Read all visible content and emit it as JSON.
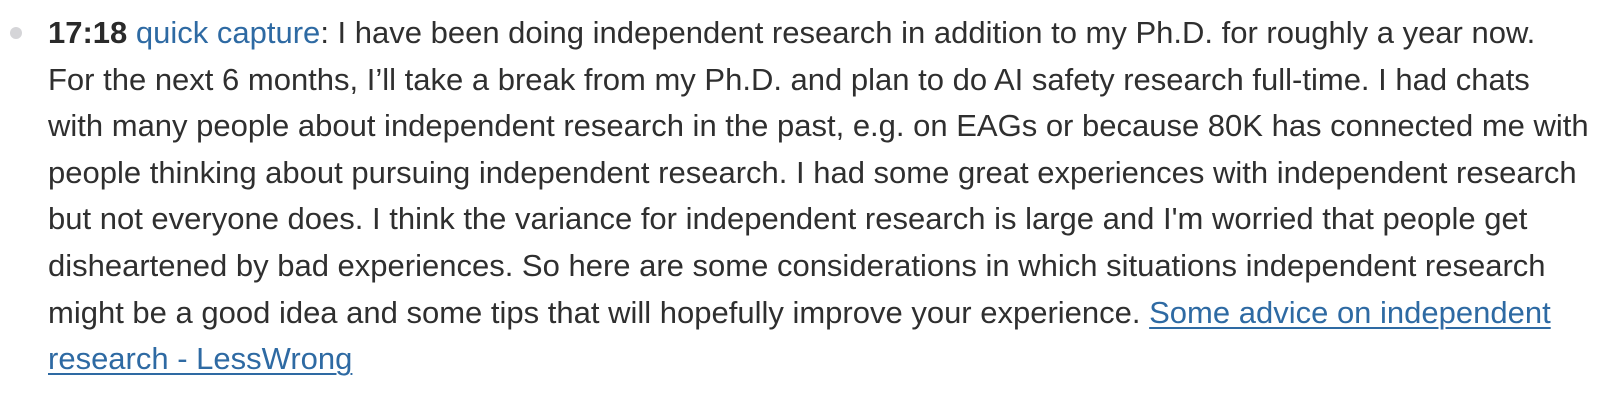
{
  "entry": {
    "time": "17:18",
    "tag": "quick capture",
    "separator": ":",
    "text": " I have been doing independent research in addition to my Ph.D. for roughly a year now. For the next 6 months, I’ll take a break from my Ph.D. and plan to do AI safety research full-time. I had chats with many people about independent research in the past, e.g. on EAGs or because 80K has connected me with people thinking about pursuing independent research. I had some great experiences with independent research but not everyone does. I think the variance for independent research is large and I'm worried that people get disheartened by bad experiences. So here are some considerations in which situations independent research might be a good idea and some tips that will hopefully improve your experience. ",
    "link_text": "Some advice on independent research - LessWrong"
  },
  "colors": {
    "link": "#2e6aa3",
    "text": "#2f2f2f",
    "bullet": "#d5d5d8"
  }
}
